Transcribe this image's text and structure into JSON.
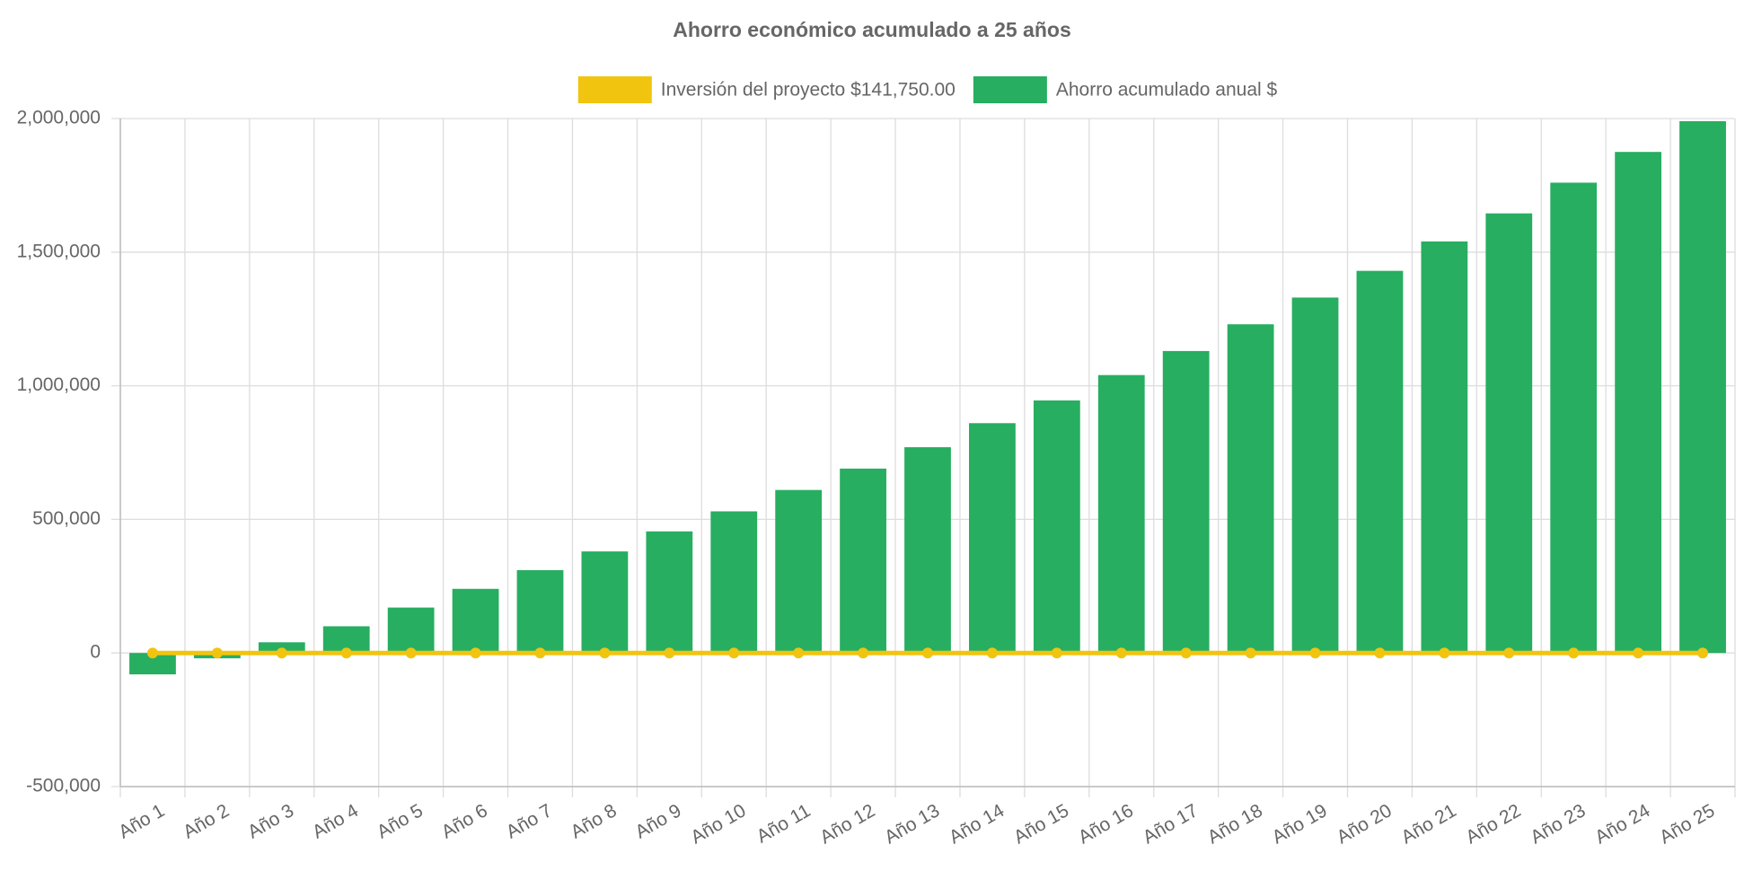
{
  "chart_data": {
    "type": "bar",
    "title": "Ahorro económico acumulado a 25 años",
    "categories": [
      "Año 1",
      "Año 2",
      "Año 3",
      "Año 4",
      "Año 5",
      "Año 6",
      "Año 7",
      "Año 8",
      "Año 9",
      "Año 10",
      "Año 11",
      "Año 12",
      "Año 13",
      "Año 14",
      "Año 15",
      "Año 16",
      "Año 17",
      "Año 18",
      "Año 19",
      "Año 20",
      "Año 21",
      "Año 22",
      "Año 23",
      "Año 24",
      "Año 25"
    ],
    "series": [
      {
        "name": "Inversión del proyecto $141,750.00",
        "type": "line",
        "color": "#f1c40f",
        "values": [
          0,
          0,
          0,
          0,
          0,
          0,
          0,
          0,
          0,
          0,
          0,
          0,
          0,
          0,
          0,
          0,
          0,
          0,
          0,
          0,
          0,
          0,
          0,
          0,
          0
        ]
      },
      {
        "name": "Ahorro acumulado anual $",
        "type": "bar",
        "color": "#27ae60",
        "values": [
          -80000,
          -20000,
          40000,
          100000,
          170000,
          240000,
          310000,
          380000,
          455000,
          530000,
          610000,
          690000,
          770000,
          860000,
          945000,
          1040000,
          1130000,
          1230000,
          1330000,
          1430000,
          1540000,
          1645000,
          1760000,
          1875000,
          1990000
        ]
      }
    ],
    "ylim": [
      -500000,
      2000000
    ],
    "yticks": [
      {
        "value": -500000,
        "label": "-500,000"
      },
      0,
      {
        "value": 500000,
        "label": "500,000"
      },
      {
        "value": 1000000,
        "label": "1,000,000"
      },
      {
        "value": 1500000,
        "label": "1,500,000"
      },
      {
        "value": 2000000,
        "label": "2,000,000"
      }
    ],
    "grid": true
  }
}
